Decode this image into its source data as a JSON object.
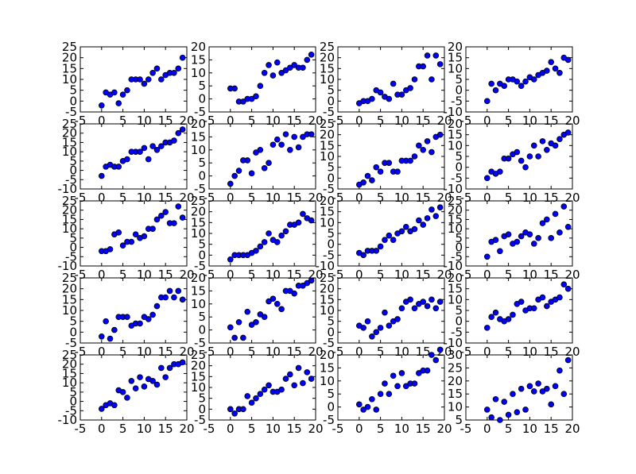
{
  "chart_data": [
    {
      "type": "scatter",
      "x": [
        0,
        1,
        2,
        3,
        4,
        5,
        6,
        7,
        8,
        9,
        10,
        11,
        12,
        13,
        14,
        15,
        16,
        17,
        18,
        19
      ],
      "y": [
        -2,
        4,
        3,
        4,
        -1,
        3,
        5,
        10,
        10,
        10,
        8,
        10,
        13,
        15,
        10,
        12,
        13,
        13,
        15,
        20
      ],
      "xlim": [
        -5,
        20
      ],
      "ylim": [
        -5,
        25
      ],
      "xticks": [
        "-5",
        "0",
        "5",
        "10",
        "15",
        "20"
      ],
      "yticks": [
        "-5",
        "0",
        "5",
        "10",
        "15",
        "20",
        "25"
      ]
    },
    {
      "type": "scatter",
      "x": [
        0,
        1,
        2,
        3,
        4,
        5,
        6,
        7,
        8,
        9,
        10,
        11,
        12,
        13,
        14,
        15,
        16,
        17,
        18,
        19
      ],
      "y": [
        4,
        4,
        -1,
        -1,
        0,
        0,
        1,
        5,
        10,
        13,
        9,
        14,
        10,
        11,
        12,
        13,
        12,
        12,
        15,
        17
      ],
      "xlim": [
        -5,
        20
      ],
      "ylim": [
        -5,
        20
      ],
      "xticks": [
        "-5",
        "0",
        "5",
        "10",
        "15",
        "20"
      ],
      "yticks": [
        "-5",
        "0",
        "5",
        "10",
        "15",
        "20"
      ]
    },
    {
      "type": "scatter",
      "x": [
        0,
        1,
        2,
        3,
        4,
        5,
        6,
        7,
        8,
        9,
        10,
        11,
        12,
        13,
        14,
        15,
        16,
        17,
        18,
        19
      ],
      "y": [
        -1,
        0,
        0,
        1,
        5,
        4,
        2,
        1,
        8,
        3,
        3,
        5,
        6,
        10,
        16,
        16,
        21,
        10,
        21,
        17
      ],
      "xlim": [
        -5,
        20
      ],
      "ylim": [
        -5,
        25
      ],
      "xticks": [
        "-5",
        "0",
        "5",
        "10",
        "15",
        "20"
      ],
      "yticks": [
        "-5",
        "0",
        "5",
        "10",
        "15",
        "20",
        "25"
      ]
    },
    {
      "type": "scatter",
      "x": [
        0,
        1,
        2,
        3,
        4,
        5,
        6,
        7,
        8,
        9,
        10,
        11,
        12,
        13,
        14,
        15,
        16,
        17,
        18,
        19
      ],
      "y": [
        -5,
        3,
        0,
        3,
        2,
        5,
        5,
        4,
        2,
        4,
        6,
        5,
        7,
        8,
        9,
        13,
        10,
        8,
        15,
        14
      ],
      "xlim": [
        -5,
        20
      ],
      "ylim": [
        -10,
        20
      ],
      "xticks": [
        "-5",
        "0",
        "5",
        "10",
        "15",
        "20"
      ],
      "yticks": [
        "-10",
        "-5",
        "0",
        "5",
        "10",
        "15",
        "20"
      ]
    },
    {
      "type": "scatter",
      "x": [
        0,
        1,
        2,
        3,
        4,
        5,
        6,
        7,
        8,
        9,
        10,
        11,
        12,
        13,
        14,
        15,
        16,
        17,
        18,
        19
      ],
      "y": [
        -3,
        2,
        3,
        2,
        2,
        5,
        6,
        10,
        10,
        10,
        12,
        6,
        13,
        11,
        13,
        15,
        15,
        16,
        20,
        22
      ],
      "xlim": [
        -5,
        20
      ],
      "ylim": [
        -10,
        25
      ],
      "xticks": [
        "-5",
        "0",
        "5",
        "10",
        "15",
        "20"
      ],
      "yticks": [
        "-10",
        "-5",
        "0",
        "5",
        "10",
        "15",
        "20",
        "25"
      ]
    },
    {
      "type": "scatter",
      "x": [
        0,
        1,
        2,
        3,
        4,
        5,
        6,
        7,
        8,
        9,
        10,
        11,
        12,
        13,
        14,
        15,
        16,
        17,
        18,
        19
      ],
      "y": [
        -3,
        0,
        2,
        6,
        6,
        1,
        9,
        10,
        3,
        5,
        12,
        14,
        12,
        16,
        10,
        15,
        11,
        15,
        16,
        16
      ],
      "xlim": [
        -5,
        20
      ],
      "ylim": [
        -5,
        20
      ],
      "xticks": [
        "-5",
        "0",
        "5",
        "10",
        "15",
        "20"
      ],
      "yticks": [
        "-5",
        "0",
        "5",
        "10",
        "15",
        "20"
      ]
    },
    {
      "type": "scatter",
      "x": [
        0,
        1,
        2,
        3,
        4,
        5,
        6,
        7,
        8,
        9,
        10,
        11,
        12,
        13,
        14,
        15,
        16,
        17,
        18,
        19
      ],
      "y": [
        -3,
        -2,
        1,
        -1,
        5,
        3,
        7,
        7,
        3,
        3,
        8,
        8,
        8,
        10,
        15,
        13,
        17,
        12,
        19,
        20
      ],
      "xlim": [
        -5,
        20
      ],
      "ylim": [
        -5,
        25
      ],
      "xticks": [
        "-5",
        "0",
        "5",
        "10",
        "15",
        "20"
      ],
      "yticks": [
        "-5",
        "0",
        "5",
        "10",
        "15",
        "20",
        "25"
      ]
    },
    {
      "type": "scatter",
      "x": [
        0,
        1,
        2,
        3,
        4,
        5,
        6,
        7,
        8,
        9,
        10,
        11,
        12,
        13,
        14,
        15,
        16,
        17,
        18,
        19
      ],
      "y": [
        -5,
        -2,
        -3,
        -2,
        4,
        4,
        6,
        7,
        3,
        0,
        5,
        10,
        5,
        12,
        8,
        11,
        10,
        13,
        15,
        16
      ],
      "xlim": [
        -5,
        20
      ],
      "ylim": [
        -10,
        20
      ],
      "xticks": [
        "-5",
        "0",
        "5",
        "10",
        "15",
        "20"
      ],
      "yticks": [
        "-10",
        "-5",
        "0",
        "5",
        "10",
        "15",
        "20"
      ]
    },
    {
      "type": "scatter",
      "x": [
        0,
        1,
        2,
        3,
        4,
        5,
        6,
        7,
        8,
        9,
        10,
        11,
        12,
        13,
        14,
        15,
        16,
        17,
        18,
        19
      ],
      "y": [
        -2,
        -2,
        -1,
        7,
        8,
        1,
        3,
        3,
        7,
        5,
        6,
        10,
        10,
        15,
        17,
        19,
        13,
        13,
        22,
        16
      ],
      "xlim": [
        -5,
        20
      ],
      "ylim": [
        -10,
        25
      ],
      "xticks": [
        "-5",
        "0",
        "5",
        "10",
        "15",
        "20"
      ],
      "yticks": [
        "-10",
        "-5",
        "0",
        "5",
        "10",
        "15",
        "20",
        "25"
      ]
    },
    {
      "type": "scatter",
      "x": [
        0,
        1,
        2,
        3,
        4,
        5,
        6,
        7,
        8,
        9,
        10,
        11,
        12,
        13,
        14,
        15,
        16,
        17,
        18,
        19
      ],
      "y": [
        -2,
        0,
        0,
        0,
        0,
        1,
        2,
        4,
        6,
        10,
        7,
        6,
        9,
        11,
        14,
        14,
        15,
        19,
        17,
        16
      ],
      "xlim": [
        -5,
        20
      ],
      "ylim": [
        -5,
        25
      ],
      "xticks": [
        "-5",
        "0",
        "5",
        "10",
        "15",
        "20"
      ],
      "yticks": [
        "-5",
        "0",
        "5",
        "10",
        "15",
        "20",
        "25"
      ]
    },
    {
      "type": "scatter",
      "x": [
        0,
        1,
        2,
        3,
        4,
        5,
        6,
        7,
        8,
        9,
        10,
        11,
        12,
        13,
        14,
        15,
        16,
        17,
        18,
        19
      ],
      "y": [
        -4,
        -5,
        -3,
        -3,
        -3,
        -1,
        2,
        4,
        2,
        5,
        6,
        8,
        6,
        7,
        11,
        9,
        12,
        16,
        13,
        17
      ],
      "xlim": [
        -5,
        20
      ],
      "ylim": [
        -10,
        20
      ],
      "xticks": [
        "-5",
        "0",
        "5",
        "10",
        "15",
        "20"
      ],
      "yticks": [
        "-10",
        "-5",
        "0",
        "5",
        "10",
        "15",
        "20"
      ]
    },
    {
      "type": "scatter",
      "x": [
        0,
        1,
        2,
        3,
        4,
        5,
        6,
        7,
        8,
        9,
        10,
        11,
        12,
        13,
        14,
        15,
        16,
        17,
        18,
        19
      ],
      "y": [
        -5,
        3,
        4,
        -2,
        6,
        7,
        2,
        3,
        6,
        8,
        7,
        2,
        5,
        13,
        15,
        5,
        18,
        8,
        22,
        11
      ],
      "xlim": [
        -5,
        20
      ],
      "ylim": [
        -10,
        25
      ],
      "xticks": [
        "-5",
        "0",
        "5",
        "10",
        "15",
        "20"
      ],
      "yticks": [
        "-10",
        "-5",
        "0",
        "5",
        "10",
        "15",
        "20",
        "25"
      ]
    },
    {
      "type": "scatter",
      "x": [
        0,
        1,
        2,
        3,
        4,
        5,
        6,
        7,
        8,
        9,
        10,
        11,
        12,
        13,
        14,
        15,
        16,
        17,
        18,
        19
      ],
      "y": [
        -2,
        5,
        -3,
        1,
        7,
        7,
        7,
        3,
        4,
        4,
        7,
        6,
        8,
        12,
        16,
        16,
        19,
        16,
        19,
        15
      ],
      "xlim": [
        -5,
        20
      ],
      "ylim": [
        -5,
        25
      ],
      "xticks": [
        "-5",
        "0",
        "5",
        "10",
        "15",
        "20"
      ],
      "yticks": [
        "-5",
        "0",
        "5",
        "10",
        "15",
        "20",
        "25"
      ]
    },
    {
      "type": "scatter",
      "x": [
        0,
        1,
        2,
        3,
        4,
        5,
        6,
        7,
        8,
        9,
        10,
        11,
        12,
        13,
        14,
        15,
        16,
        17,
        18,
        19
      ],
      "y": [
        1,
        -3,
        3,
        -3,
        7,
        2,
        3,
        6,
        5,
        11,
        12,
        10,
        8,
        15,
        15,
        14,
        17,
        17,
        18,
        19
      ],
      "xlim": [
        -5,
        20
      ],
      "ylim": [
        -5,
        20
      ],
      "xticks": [
        "-5",
        "0",
        "5",
        "10",
        "15",
        "20"
      ],
      "yticks": [
        "-5",
        "0",
        "5",
        "10",
        "15",
        "20"
      ]
    },
    {
      "type": "scatter",
      "x": [
        0,
        1,
        2,
        3,
        4,
        5,
        6,
        7,
        8,
        9,
        10,
        11,
        12,
        13,
        14,
        15,
        16,
        17,
        18,
        19
      ],
      "y": [
        3,
        2,
        5,
        -2,
        0,
        2,
        9,
        3,
        5,
        6,
        11,
        14,
        15,
        11,
        13,
        14,
        12,
        15,
        11,
        14
      ],
      "xlim": [
        -5,
        20
      ],
      "ylim": [
        -5,
        25
      ],
      "xticks": [
        "-5",
        "0",
        "5",
        "10",
        "15",
        "20"
      ],
      "yticks": [
        "-5",
        "0",
        "5",
        "10",
        "15",
        "20",
        "25"
      ]
    },
    {
      "type": "scatter",
      "x": [
        0,
        1,
        2,
        3,
        4,
        5,
        6,
        7,
        8,
        9,
        10,
        11,
        12,
        13,
        14,
        15,
        16,
        17,
        18,
        19
      ],
      "y": [
        -3,
        2,
        4,
        1,
        0,
        1,
        3,
        8,
        9,
        5,
        6,
        6,
        10,
        11,
        7,
        9,
        10,
        11,
        17,
        15
      ],
      "xlim": [
        -5,
        20
      ],
      "ylim": [
        -10,
        20
      ],
      "xticks": [
        "-5",
        "0",
        "5",
        "10",
        "15",
        "20"
      ],
      "yticks": [
        "-10",
        "-5",
        "0",
        "5",
        "10",
        "15",
        "20"
      ]
    },
    {
      "type": "scatter",
      "x": [
        0,
        1,
        2,
        3,
        4,
        5,
        6,
        7,
        8,
        9,
        10,
        11,
        12,
        13,
        14,
        15,
        16,
        17,
        18,
        19
      ],
      "y": [
        -4,
        -2,
        -1,
        -2,
        6,
        5,
        2,
        11,
        7,
        13,
        8,
        12,
        11,
        9,
        18,
        13,
        18,
        20,
        20,
        21
      ],
      "xlim": [
        -5,
        20
      ],
      "ylim": [
        -10,
        25
      ],
      "xticks": [
        "-5",
        "0",
        "5",
        "10",
        "15",
        "20"
      ],
      "yticks": [
        "-10",
        "-5",
        "0",
        "5",
        "10",
        "15",
        "20",
        "25"
      ]
    },
    {
      "type": "scatter",
      "x": [
        0,
        1,
        2,
        3,
        4,
        5,
        6,
        7,
        8,
        9,
        10,
        11,
        12,
        13,
        14,
        15,
        16,
        17,
        18,
        19
      ],
      "y": [
        0,
        -2,
        0,
        0,
        6,
        3,
        5,
        7,
        9,
        11,
        8,
        8,
        9,
        14,
        16,
        11,
        19,
        12,
        17,
        14
      ],
      "xlim": [
        -5,
        20
      ],
      "ylim": [
        -5,
        25
      ],
      "xticks": [
        "-5",
        "0",
        "5",
        "10",
        "15",
        "20"
      ],
      "yticks": [
        "-5",
        "0",
        "5",
        "10",
        "15",
        "20",
        "25"
      ]
    },
    {
      "type": "scatter",
      "x": [
        0,
        1,
        2,
        3,
        4,
        5,
        6,
        7,
        8,
        9,
        10,
        11,
        12,
        13,
        14,
        15,
        16,
        17,
        18,
        19
      ],
      "y": [
        1,
        -1,
        0,
        3,
        -1,
        5,
        9,
        5,
        12,
        8,
        13,
        8,
        9,
        9,
        13,
        14,
        14,
        20,
        18,
        22
      ],
      "xlim": [
        -5,
        20
      ],
      "ylim": [
        -5,
        20
      ],
      "xticks": [
        "-5",
        "0",
        "5",
        "10",
        "15",
        "20"
      ],
      "yticks": [
        "-5",
        "0",
        "5",
        "10",
        "15",
        "20"
      ]
    },
    {
      "type": "scatter",
      "x": [
        0,
        1,
        2,
        3,
        4,
        5,
        6,
        7,
        8,
        9,
        10,
        11,
        12,
        13,
        14,
        15,
        16,
        17,
        18,
        19
      ],
      "y": [
        9,
        6,
        13,
        5,
        12,
        7,
        15,
        8,
        17,
        9,
        18,
        16,
        19,
        16,
        17,
        11,
        18,
        24,
        15,
        28
      ],
      "xlim": [
        -5,
        20
      ],
      "ylim": [
        5,
        30
      ],
      "xticks": [
        "-5",
        "0",
        "5",
        "10",
        "15",
        "20"
      ],
      "yticks": [
        "5",
        "10",
        "15",
        "20",
        "25",
        "30"
      ]
    }
  ]
}
